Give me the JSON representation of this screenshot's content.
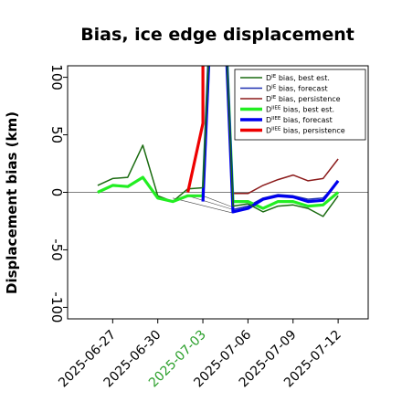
{
  "chart_data": {
    "type": "line",
    "title": "Bias, ice edge displacement",
    "xlabel": "",
    "ylabel": "Displacement bias (km)",
    "ylim": [
      -110,
      110
    ],
    "yticks": [
      -100,
      -50,
      0,
      50,
      100
    ],
    "xlim": [
      "2025-06-24",
      "2025-07-14"
    ],
    "xticks": [
      "2025-06-27",
      "2025-06-30",
      "2025-07-03",
      "2025-07-06",
      "2025-07-09",
      "2025-07-12"
    ],
    "highlight_xtick": "2025-07-03",
    "highlight_color": "#2ca02c",
    "zero_line": true,
    "grid": false,
    "legend_placement": "top-right",
    "series": [
      {
        "name": "D^IE bias, best est.",
        "color": "#1a6b10",
        "width": "thin",
        "x": [
          "2025-06-26",
          "2025-06-27",
          "2025-06-28",
          "2025-06-29",
          "2025-06-30",
          "2025-07-01",
          "2025-07-02",
          "2025-07-03"
        ],
        "y": [
          6,
          12,
          13,
          41,
          -3,
          -8,
          3,
          4
        ]
      },
      {
        "name": "D^IE bias, forecast",
        "color": "#1d2fb0",
        "width": "thin",
        "x": [
          "2025-07-05",
          "2025-07-06",
          "2025-07-07",
          "2025-07-08",
          "2025-07-09",
          "2025-07-10",
          "2025-07-11",
          "2025-07-12"
        ],
        "y": [
          -15,
          -12,
          -5,
          -2,
          -3,
          -6,
          -5,
          9
        ]
      },
      {
        "name": "D^IE bias, persistence",
        "color": "#8b1a1a",
        "width": "thin",
        "x": [
          "2025-07-05",
          "2025-07-06",
          "2025-07-07",
          "2025-07-08",
          "2025-07-09",
          "2025-07-10",
          "2025-07-11",
          "2025-07-12"
        ],
        "y": [
          -1,
          -1,
          6,
          11,
          15,
          10,
          12,
          29
        ]
      },
      {
        "name": "D^IIEE bias, best est.",
        "color": "#22ee22",
        "width": "thick",
        "x": [
          "2025-06-26",
          "2025-06-27",
          "2025-06-28",
          "2025-06-29",
          "2025-06-30",
          "2025-07-01",
          "2025-07-02",
          "2025-07-03",
          "2025-07-04",
          "2025-07-05",
          "2025-07-06",
          "2025-07-07",
          "2025-07-08",
          "2025-07-09",
          "2025-07-10",
          "2025-07-11",
          "2025-07-12"
        ],
        "y": [
          0,
          6,
          5,
          13,
          -5,
          -8,
          -3,
          -3,
          300,
          -8,
          -8,
          -14,
          -8,
          -8,
          -12,
          -11,
          0
        ]
      },
      {
        "name": "D^IIEE bias, forecast",
        "color": "#0000ee",
        "width": "thick",
        "x": [
          "2025-07-03",
          "2025-07-04",
          "2025-07-05",
          "2025-07-06",
          "2025-07-07",
          "2025-07-08",
          "2025-07-09",
          "2025-07-10",
          "2025-07-11",
          "2025-07-12"
        ],
        "y": [
          -8,
          300,
          -17,
          -14,
          -6,
          -3,
          -4,
          -8,
          -7,
          10
        ]
      },
      {
        "name": "D^IIEE bias, persistence",
        "color": "#ee0000",
        "width": "thick",
        "x": [
          "2025-07-02",
          "2025-07-03",
          "2025-07-03"
        ],
        "y": [
          0,
          60,
          300
        ]
      },
      {
        "name": "",
        "color": "#1a6b10",
        "width": "thin",
        "x": [
          "2025-07-06",
          "2025-07-07",
          "2025-07-08",
          "2025-07-09",
          "2025-07-10",
          "2025-07-11",
          "2025-07-12"
        ],
        "y": [
          -10,
          -17,
          -12,
          -11,
          -14,
          -21,
          -3
        ]
      },
      {
        "name": "",
        "color": "#1a6b10",
        "width": "thin",
        "x": [
          "2025-07-03",
          "2025-07-04",
          "2025-07-05",
          "2025-07-06"
        ],
        "y": [
          4,
          300,
          -12,
          -10
        ]
      }
    ],
    "connectors": [
      {
        "color": "#444444",
        "x": [
          "2025-07-01",
          "2025-07-05"
        ],
        "y": [
          -5,
          -18
        ]
      },
      {
        "color": "#444444",
        "x": [
          "2025-07-02",
          "2025-07-05"
        ],
        "y": [
          -3,
          -15
        ]
      },
      {
        "color": "#444444",
        "x": [
          "2025-07-03",
          "2025-07-05"
        ],
        "y": [
          -3,
          -13
        ]
      }
    ],
    "legend": [
      {
        "label": "D^IE bias, best est.",
        "color": "#1a6b10",
        "width": "thin"
      },
      {
        "label": "D^IE bias, forecast",
        "color": "#1d2fb0",
        "width": "thin"
      },
      {
        "label": "D^IE bias, persistence",
        "color": "#8b1a1a",
        "width": "thin"
      },
      {
        "label": "D^IIEE bias, best est.",
        "color": "#22ee22",
        "width": "thick"
      },
      {
        "label": "D^IIEE bias, forecast",
        "color": "#0000ee",
        "width": "thick"
      },
      {
        "label": "D^IIEE bias, persistence",
        "color": "#ee0000",
        "width": "thick"
      }
    ]
  }
}
